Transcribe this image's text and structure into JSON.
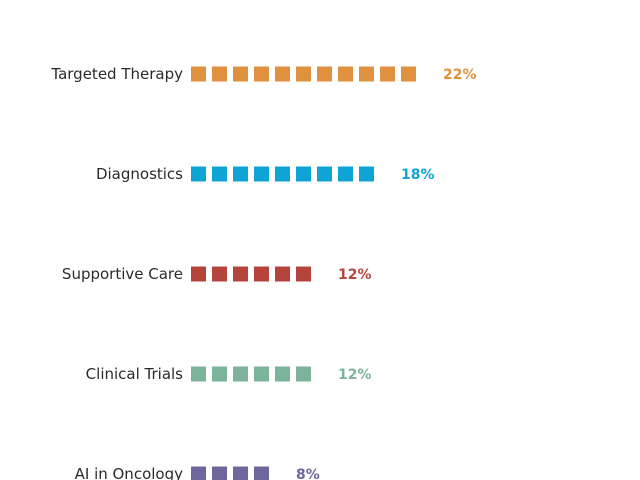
{
  "chart_data": {
    "type": "bar",
    "style": "pictogram-squares",
    "categories": [
      "Targeted Therapy",
      "Diagnostics",
      "Supportive Care",
      "Clinical Trials",
      "AI in Oncology"
    ],
    "values": [
      22,
      18,
      12,
      12,
      8
    ],
    "value_labels": [
      "22%",
      "18%",
      "12%",
      "12%",
      "8%"
    ],
    "units_per_square": 2,
    "colors": [
      "#E0913F",
      "#0EA5D6",
      "#B5443D",
      "#7BB39B",
      "#6E679C"
    ],
    "title": "",
    "xlabel": "",
    "ylabel": "",
    "legend": "none",
    "grid": false
  }
}
